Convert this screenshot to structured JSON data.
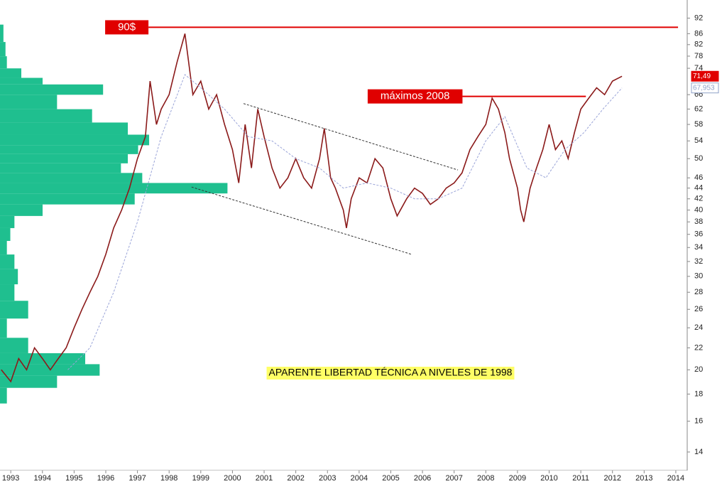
{
  "chart_data": {
    "type": "line",
    "log_y": true,
    "xlim": [
      1992.66,
      2014.36
    ],
    "ylim": [
      13,
      96.5
    ],
    "xticks": [
      1993,
      1994,
      1995,
      1996,
      1997,
      1998,
      1999,
      2000,
      2001,
      2002,
      2003,
      2004,
      2005,
      2006,
      2007,
      2008,
      2009,
      2010,
      2011,
      2012,
      2013,
      2014
    ],
    "yticks": [
      92,
      86,
      82,
      78,
      74,
      66,
      62,
      58,
      54,
      50,
      46,
      44,
      42,
      40,
      38,
      36,
      34,
      32,
      30,
      28,
      26,
      24,
      22,
      20,
      18,
      16,
      14
    ],
    "series": [
      {
        "color": "#8b1a1a",
        "x": [
          1992.7,
          1993.0,
          1993.25,
          1993.5,
          1993.75,
          1994.0,
          1994.25,
          1994.5,
          1994.75,
          1995.0,
          1995.25,
          1995.5,
          1995.75,
          1996.0,
          1996.25,
          1996.5,
          1996.75,
          1997.0,
          1997.25,
          1997.4,
          1997.6,
          1997.75,
          1998.0,
          1998.25,
          1998.5,
          1998.75,
          1999.0,
          1999.25,
          1999.5,
          1999.75,
          2000.0,
          2000.2,
          2000.4,
          2000.6,
          2000.8,
          2001.0,
          2001.25,
          2001.5,
          2001.75,
          2002.0,
          2002.25,
          2002.5,
          2002.75,
          2002.9,
          2003.1,
          2003.25,
          2003.5,
          2003.6,
          2003.75,
          2004.0,
          2004.25,
          2004.5,
          2004.75,
          2005.0,
          2005.2,
          2005.5,
          2005.75,
          2006.0,
          2006.25,
          2006.5,
          2006.75,
          2007.0,
          2007.25,
          2007.5,
          2007.75,
          2008.0,
          2008.2,
          2008.4,
          2008.6,
          2008.75,
          2009.0,
          2009.1,
          2009.2,
          2009.4,
          2009.6,
          2009.8,
          2010.0,
          2010.2,
          2010.4,
          2010.6,
          2010.8,
          2011.0,
          2011.25,
          2011.5,
          2011.75,
          2012.0,
          2012.3
        ],
        "values": [
          20,
          19,
          21,
          20,
          22,
          21,
          20,
          21,
          22,
          24,
          26,
          28,
          30,
          33,
          37,
          40,
          44,
          50,
          55,
          70,
          58,
          62,
          66,
          76,
          86,
          66,
          70,
          62,
          66,
          58,
          52,
          45,
          58,
          48,
          62,
          55,
          48,
          44,
          46,
          50,
          46,
          44,
          50,
          57,
          46,
          44,
          40,
          37,
          42,
          46,
          45,
          50,
          48,
          42,
          39,
          42,
          44,
          43,
          41,
          42,
          44,
          45,
          47,
          52,
          55,
          58,
          65,
          62,
          56,
          50,
          44,
          40,
          38,
          44,
          48,
          52,
          58,
          52,
          54,
          50,
          56,
          62,
          65,
          68,
          66,
          70,
          71.49
        ]
      },
      {
        "color": "#9aa4d8",
        "dashed": true,
        "x": [
          1994.8,
          1995.5,
          1996.25,
          1997.0,
          1997.75,
          1998.5,
          1999.0,
          1999.75,
          2000.5,
          2001.25,
          2002.0,
          2002.75,
          2003.5,
          2004.25,
          2005.0,
          2005.75,
          2006.5,
          2007.25,
          2008.0,
          2008.6,
          2009.3,
          2009.9,
          2010.5,
          2011.1,
          2011.7,
          2012.3
        ],
        "values": [
          20,
          22,
          28,
          38,
          55,
          72,
          68,
          62,
          55,
          54,
          50,
          48,
          44,
          45,
          44,
          42,
          42,
          44,
          54,
          60,
          48,
          46,
          52,
          56,
          62,
          67.953
        ]
      }
    ],
    "volume_profile": {
      "color": "#1fbf8f",
      "xlim": [
        0,
        100
      ],
      "levels": [
        86,
        80,
        76,
        72,
        70,
        68,
        64,
        60,
        57,
        54,
        52,
        50,
        48,
        46,
        44,
        42,
        40,
        38,
        36,
        34,
        32,
        30,
        28,
        26,
        24,
        22,
        21,
        20,
        19,
        18
      ],
      "values": [
        0.5,
        0.8,
        1.0,
        3.1,
        6.2,
        15.0,
        8.3,
        13.4,
        18.6,
        21.7,
        20.1,
        18.6,
        17.6,
        20.7,
        33.1,
        19.6,
        6.2,
        2.1,
        1.5,
        1.0,
        2.1,
        2.6,
        2.1,
        4.1,
        1.0,
        4.1,
        12.4,
        14.5,
        8.3,
        1.0
      ]
    },
    "levels": [
      {
        "label": "90$",
        "value": 88.4,
        "x": [
          1995.98,
          2014.07
        ],
        "color": "#e00000"
      },
      {
        "label": "máximos 2008",
        "value": 65.5,
        "x": [
          2004.27,
          2011.16
        ],
        "color": "#e00000"
      }
    ],
    "trendlines": [
      {
        "x": [
          2000.35,
          2007.12
        ],
        "values": [
          63.5,
          47.6
        ]
      },
      {
        "x": [
          1998.71,
          2005.66
        ],
        "values": [
          44.2,
          33.0
        ]
      }
    ],
    "note": "APARENTE LIBERTAD TÉCNICA A NIVELES DE 1998",
    "last_price": {
      "value": 71.49,
      "label": "71,49"
    },
    "ma_last": {
      "value": 67.953,
      "label": "67,953"
    }
  }
}
